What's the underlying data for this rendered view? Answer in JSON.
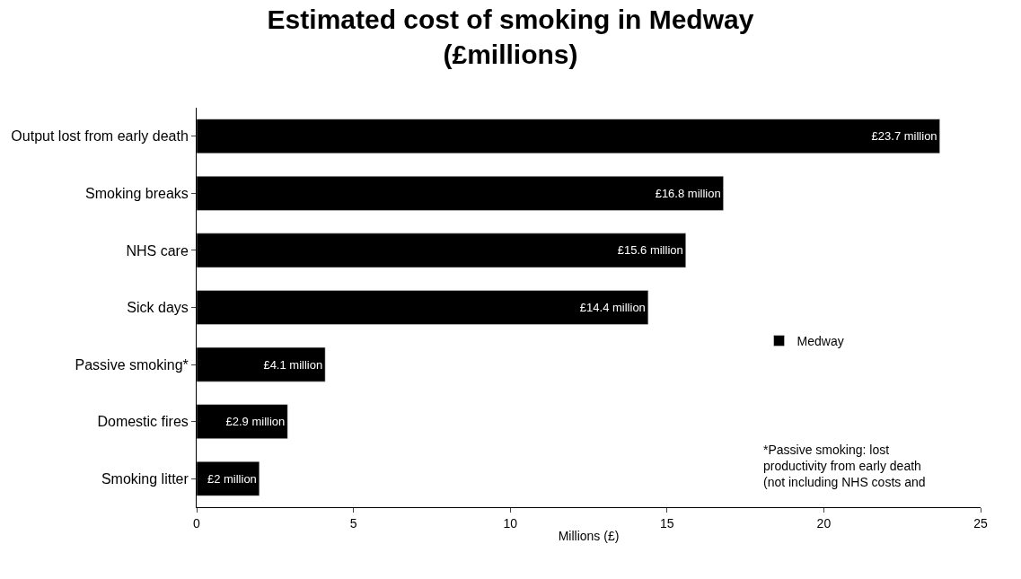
{
  "chart_data": {
    "type": "bar",
    "orientation": "horizontal",
    "title": "Estimated cost of smoking in Medway\n(£millions)",
    "categories": [
      "Output lost from early death",
      "Smoking breaks",
      "NHS care",
      "Sick days",
      "Passive smoking*",
      "Domestic fires",
      "Smoking litter"
    ],
    "series": [
      {
        "name": "Medway",
        "color": "#000000",
        "values": [
          23.7,
          16.8,
          15.6,
          14.4,
          4.1,
          2.9,
          2
        ],
        "value_labels": [
          "£23.7 million",
          "£16.8 million",
          "£15.6 million",
          "£14.4 million",
          "£4.1 million",
          "£2.9 million",
          "£2 million"
        ]
      }
    ],
    "xlabel": "Millions (£)",
    "xlim": [
      0,
      25
    ],
    "xticks": [
      0,
      5,
      10,
      15,
      20,
      25
    ],
    "legend": "bottom right",
    "annotations": [
      "*Passive smoking: lost productivity from early death (not including NHS costs and"
    ]
  }
}
